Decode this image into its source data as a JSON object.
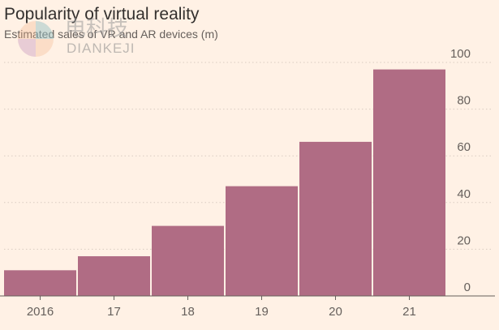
{
  "chart_data": {
    "type": "bar",
    "title": "Popularity of virtual reality",
    "subtitle": "Estimated sales of VR and AR devices (m)",
    "categories": [
      "2016",
      "17",
      "18",
      "19",
      "20",
      "21"
    ],
    "values": [
      11,
      17,
      30,
      47,
      66,
      97
    ],
    "ylim": [
      0,
      100
    ],
    "yticks": [
      0,
      20,
      40,
      60,
      80,
      100
    ],
    "xlabel": "",
    "ylabel": "",
    "grid": true,
    "bar_color": "#B06C84",
    "background": "#FFF1E5",
    "watermark": {
      "cn": "电科技",
      "en": "DIANKEJI"
    }
  }
}
